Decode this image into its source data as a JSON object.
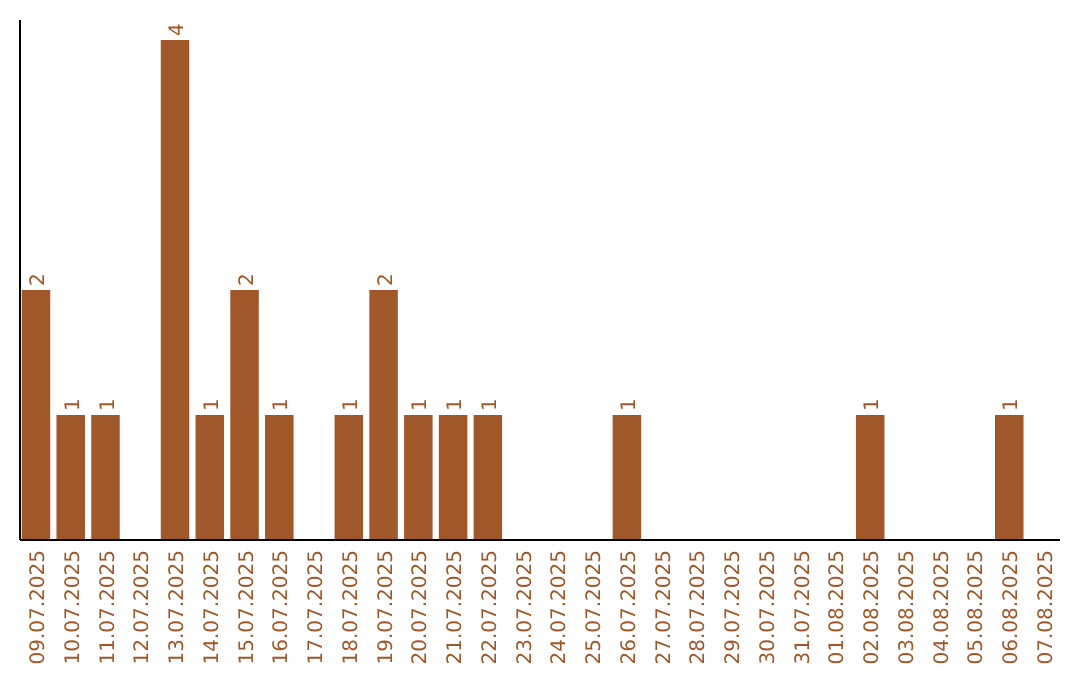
{
  "chart_data": {
    "type": "bar",
    "categories": [
      "09.07.2025",
      "10.07.2025",
      "11.07.2025",
      "12.07.2025",
      "13.07.2025",
      "14.07.2025",
      "15.07.2025",
      "16.07.2025",
      "17.07.2025",
      "18.07.2025",
      "19.07.2025",
      "20.07.2025",
      "21.07.2025",
      "22.07.2025",
      "23.07.2025",
      "24.07.2025",
      "25.07.2025",
      "26.07.2025",
      "27.07.2025",
      "28.07.2025",
      "29.07.2025",
      "30.07.2025",
      "31.07.2025",
      "01.08.2025",
      "02.08.2025",
      "03.08.2025",
      "04.08.2025",
      "05.08.2025",
      "06.08.2025",
      "07.08.2025"
    ],
    "values": [
      2,
      1,
      1,
      0,
      4,
      1,
      2,
      1,
      0,
      1,
      2,
      1,
      1,
      1,
      0,
      0,
      0,
      1,
      0,
      0,
      0,
      0,
      0,
      0,
      1,
      0,
      0,
      0,
      1,
      0
    ],
    "value_labels": [
      "2",
      "1",
      "1",
      null,
      "4",
      "1",
      "2",
      "1",
      null,
      "1",
      "2",
      "1",
      "1",
      "1",
      null,
      null,
      null,
      "1",
      null,
      null,
      null,
      null,
      null,
      null,
      "1",
      null,
      null,
      null,
      "1",
      null
    ],
    "color": "#a0582a",
    "ylim": [
      0,
      4
    ],
    "tick_labels": "x"
  }
}
